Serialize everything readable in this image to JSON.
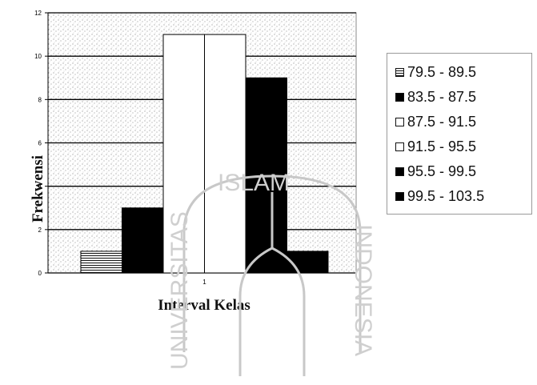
{
  "chart_data": {
    "type": "bar",
    "xlabel": "Interval Kelas",
    "ylabel": "Frekwensi",
    "categories": [
      "1"
    ],
    "ylim": [
      0,
      12
    ],
    "yticks": [
      0,
      2,
      4,
      6,
      8,
      10,
      12
    ],
    "grid": true,
    "legend_position": "right",
    "series": [
      {
        "name": "79.5 - 89.5",
        "values": [
          1
        ],
        "color": "#ffffff",
        "legend_style": "striped"
      },
      {
        "name": "83.5 - 87.5",
        "values": [
          3
        ],
        "color": "#000000",
        "legend_style": "solid"
      },
      {
        "name": "87.5 - 91.5",
        "values": [
          11
        ],
        "color": "#ffffff",
        "legend_style": "outline"
      },
      {
        "name": "91.5 - 95.5",
        "values": [
          11
        ],
        "color": "#ffffff",
        "legend_style": "outline"
      },
      {
        "name": "95.5 - 99.5",
        "values": [
          9
        ],
        "color": "#000000",
        "legend_style": "solid"
      },
      {
        "name": "99.5 - 103.5",
        "values": [
          1
        ],
        "color": "#000000",
        "legend_style": "solid"
      }
    ]
  },
  "watermark": {
    "text_left": "UNIVERSITAS",
    "text_top": "ISLAM",
    "text_right": "INDONESIA"
  }
}
